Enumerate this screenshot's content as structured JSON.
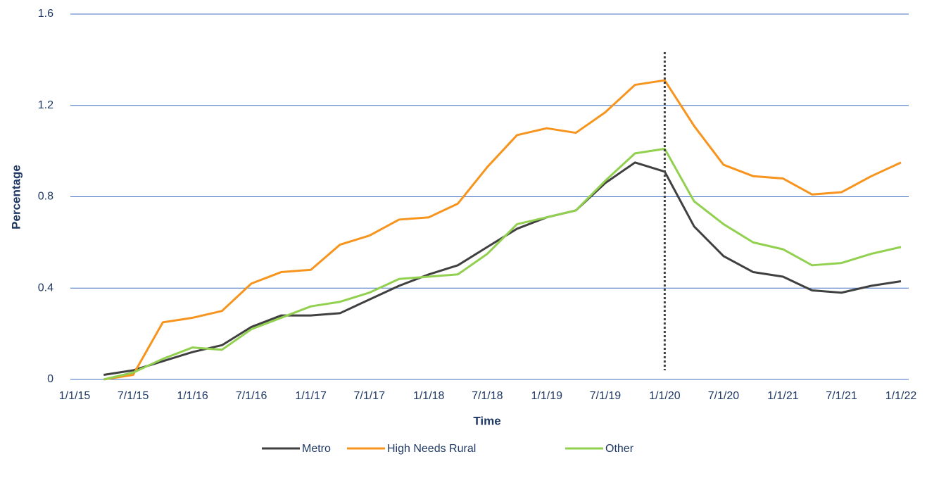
{
  "chart_data": {
    "type": "line",
    "x_label": "Time",
    "y_label": "Percentage",
    "x": [
      "4/1/15",
      "7/1/15",
      "10/1/15",
      "1/1/16",
      "4/1/16",
      "7/1/16",
      "10/1/16",
      "1/1/17",
      "4/1/17",
      "7/1/17",
      "10/1/17",
      "1/1/18",
      "4/1/18",
      "7/1/18",
      "10/1/18",
      "1/1/19",
      "4/1/19",
      "7/1/19",
      "10/1/19",
      "1/1/20",
      "4/1/20",
      "7/1/20",
      "10/1/20",
      "1/1/21",
      "4/1/21",
      "7/1/21",
      "10/1/21",
      "1/1/22"
    ],
    "series": [
      {
        "name": "Metro",
        "color": "#404040",
        "values": [
          0.02,
          0.04,
          0.08,
          0.12,
          0.15,
          0.23,
          0.28,
          0.28,
          0.29,
          0.35,
          0.41,
          0.46,
          0.5,
          0.58,
          0.66,
          0.71,
          0.74,
          0.86,
          0.95,
          0.91,
          0.67,
          0.54,
          0.47,
          0.45,
          0.39,
          0.38,
          0.41,
          0.43
        ]
      },
      {
        "name": "High Needs Rural",
        "color": "#f7941d",
        "values": [
          0.0,
          0.02,
          0.25,
          0.27,
          0.3,
          0.42,
          0.47,
          0.48,
          0.59,
          0.63,
          0.7,
          0.71,
          0.77,
          0.93,
          1.07,
          1.1,
          1.08,
          1.17,
          1.29,
          1.31,
          1.11,
          0.94,
          0.89,
          0.88,
          0.81,
          0.82,
          0.89,
          0.95
        ]
      },
      {
        "name": "Other",
        "color": "#92d050",
        "values": [
          0.0,
          0.03,
          0.09,
          0.14,
          0.13,
          0.22,
          0.27,
          0.32,
          0.34,
          0.38,
          0.44,
          0.45,
          0.46,
          0.55,
          0.68,
          0.71,
          0.74,
          0.87,
          0.99,
          1.01,
          0.78,
          0.68,
          0.6,
          0.57,
          0.5,
          0.51,
          0.55,
          0.58
        ]
      }
    ],
    "xlim": [
      "1/1/15",
      "1/1/22"
    ],
    "xticks": [
      "1/1/15",
      "7/1/15",
      "1/1/16",
      "7/1/16",
      "1/1/17",
      "7/1/17",
      "1/1/18",
      "7/1/18",
      "1/1/19",
      "7/1/19",
      "1/1/20",
      "7/1/20",
      "1/1/21",
      "7/1/21",
      "1/1/22"
    ],
    "ylim": [
      0,
      1.6
    ],
    "yticks": [
      0,
      0.4,
      0.8,
      1.2,
      1.6
    ],
    "grid": true,
    "grid_color": "#4472c4",
    "vline": "1/1/20",
    "legend": "bottom"
  }
}
